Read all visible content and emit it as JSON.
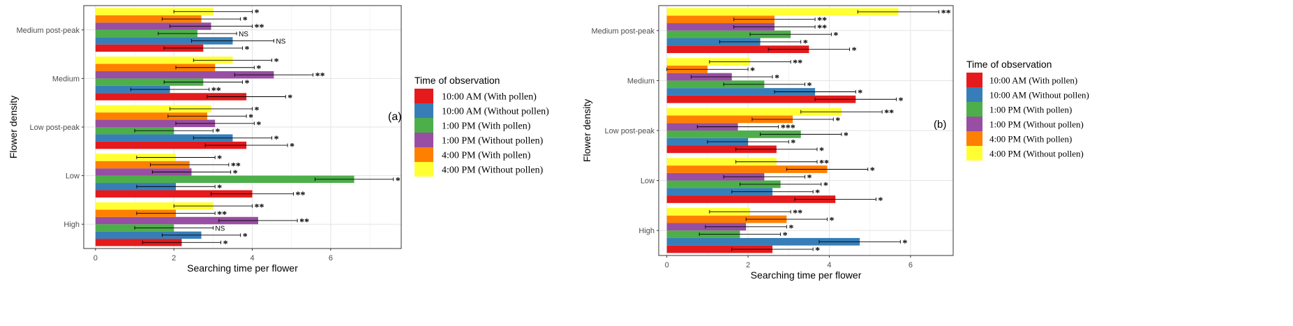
{
  "figure": {
    "legend_title": "Time  of  observation",
    "colors": {
      "10:00 AM (With pollen)": "#e41a1c",
      "10:00 AM (Without pollen)": "#377eb8",
      "1:00 PM (With pollen)": "#4daf4a",
      "1:00 PM (Without pollen)": "#984ea3",
      "4:00 PM (With pollen)": "#ff7f00",
      "4:00 PM (Without pollen)": "#ffff33"
    }
  },
  "chart_data": [
    {
      "type": "bar",
      "orientation": "horizontal",
      "panel_label": "(a)",
      "xlabel": "Searching time per flower",
      "ylabel": "Flower  density",
      "xlim": [
        -0.3,
        7.8
      ],
      "xticks": [
        0,
        2,
        4,
        6
      ],
      "grid": true,
      "legend_position": "right",
      "categories": [
        "High",
        "Low",
        "Low post-peak",
        "Medium",
        "Medium post-peak"
      ],
      "series": [
        {
          "name": "10:00 AM (With pollen)",
          "values": [
            2.2,
            4.0,
            3.85,
            3.85,
            2.75
          ],
          "errors": [
            1.0,
            1.05,
            1.05,
            1.0,
            1.0
          ],
          "signif": [
            "*",
            "**",
            "*",
            "*",
            "*"
          ]
        },
        {
          "name": "10:00 AM (Without pollen)",
          "values": [
            2.7,
            2.05,
            3.5,
            1.9,
            3.5
          ],
          "errors": [
            1.0,
            1.0,
            1.0,
            1.0,
            1.05
          ],
          "signif": [
            "*",
            "*",
            "*",
            "**",
            "NS"
          ]
        },
        {
          "name": "1:00 PM (With pollen)",
          "values": [
            2.0,
            6.6,
            2.0,
            2.75,
            2.6
          ],
          "errors": [
            1.0,
            1.0,
            1.0,
            1.0,
            1.0
          ],
          "signif": [
            "NS",
            "*",
            "*",
            "*",
            "NS"
          ]
        },
        {
          "name": "1:00 PM (Without pollen)",
          "values": [
            4.15,
            2.45,
            3.05,
            4.55,
            2.95
          ],
          "errors": [
            1.0,
            1.0,
            1.0,
            1.0,
            1.05
          ],
          "signif": [
            "**",
            "*",
            "*",
            "**",
            "**"
          ]
        },
        {
          "name": "4:00 PM (With pollen)",
          "values": [
            2.05,
            2.4,
            2.85,
            3.05,
            2.7
          ],
          "errors": [
            1.0,
            1.0,
            1.0,
            1.0,
            1.0
          ],
          "signif": [
            "**",
            "**",
            "*",
            "*",
            "*"
          ]
        },
        {
          "name": "4:00 PM (Without pollen)",
          "values": [
            3.0,
            2.05,
            2.95,
            3.5,
            3.0
          ],
          "errors": [
            1.0,
            1.0,
            1.05,
            1.0,
            1.0
          ],
          "signif": [
            "**",
            "*",
            "*",
            "*",
            "*"
          ]
        }
      ]
    },
    {
      "type": "bar",
      "orientation": "horizontal",
      "panel_label": "(b)",
      "xlabel": "Searching time per flower",
      "ylabel": "Flower  density",
      "xlim": [
        -0.2,
        7.05
      ],
      "xticks": [
        0,
        2,
        4,
        6
      ],
      "grid": true,
      "legend_position": "right",
      "categories": [
        "High",
        "Low",
        "Low post-peak",
        "Medium",
        "Medium post-peak"
      ],
      "series": [
        {
          "name": "10:00 AM (With pollen)",
          "values": [
            2.6,
            4.15,
            2.7,
            4.65,
            3.5
          ],
          "errors": [
            1.0,
            1.0,
            1.0,
            1.0,
            1.0
          ],
          "signif": [
            "*",
            "*",
            "*",
            "*",
            "*"
          ]
        },
        {
          "name": "10:00 AM (Without pollen)",
          "values": [
            4.75,
            2.6,
            2.0,
            3.65,
            2.3
          ],
          "errors": [
            1.0,
            1.0,
            1.0,
            1.0,
            1.0
          ],
          "signif": [
            "*",
            "*",
            "*",
            "*",
            "*"
          ]
        },
        {
          "name": "1:00 PM (With pollen)",
          "values": [
            1.8,
            2.8,
            3.3,
            2.4,
            3.05
          ],
          "errors": [
            1.0,
            1.0,
            1.0,
            1.0,
            1.0
          ],
          "signif": [
            "*",
            "*",
            "*",
            "*",
            "*"
          ]
        },
        {
          "name": "1:00 PM (Without pollen)",
          "values": [
            1.95,
            2.4,
            1.75,
            1.6,
            2.65
          ],
          "errors": [
            1.0,
            1.0,
            1.0,
            1.0,
            1.0
          ],
          "signif": [
            "*",
            "*",
            "***",
            "*",
            "**"
          ]
        },
        {
          "name": "4:00 PM (With pollen)",
          "values": [
            2.95,
            3.95,
            3.1,
            1.0,
            2.65
          ],
          "errors": [
            1.0,
            1.0,
            1.0,
            1.0,
            1.0
          ],
          "signif": [
            "*",
            "*",
            "*",
            "*",
            "**"
          ]
        },
        {
          "name": "4:00 PM (Without pollen)",
          "values": [
            2.05,
            2.7,
            4.3,
            2.05,
            5.7
          ],
          "errors": [
            1.0,
            1.0,
            1.0,
            1.0,
            1.0
          ],
          "signif": [
            "**",
            "**",
            "**",
            "**",
            "**"
          ]
        }
      ]
    }
  ]
}
